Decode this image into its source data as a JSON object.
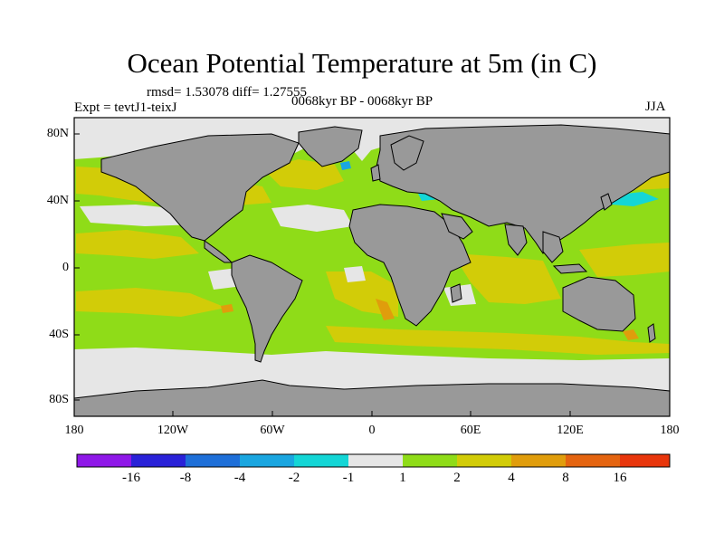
{
  "title": "Ocean Potential Temperature at 5m (in C)",
  "stats": "rmsd= 1.53078 diff= 1.27555",
  "experiment": "Expt = tevtJ1-teixJ",
  "period": "0068kyr BP - 0068kyr BP",
  "season": "JJA",
  "lat_labels": [
    "80N",
    "40N",
    "0",
    "40S",
    "80S"
  ],
  "lon_labels": [
    "180",
    "120W",
    "60W",
    "0",
    "60E",
    "120E",
    "180"
  ],
  "colorbar": {
    "labels": [
      "-16",
      "-8",
      "-4",
      "-2",
      "-1",
      "1",
      "2",
      "4",
      "8",
      "16"
    ],
    "colors": [
      "#8f18e8",
      "#2a22d8",
      "#1e6fd8",
      "#1aa6e0",
      "#14d6d6",
      "#e6e6e6",
      "#8fdc18",
      "#d2cc08",
      "#e09d0c",
      "#e46410",
      "#e8360c"
    ]
  },
  "map_colors": {
    "land": "#999999",
    "sea_ice": "#e6e6e6",
    "warm_1_2": "#8fdc18",
    "warm_2_4": "#d2cc08",
    "warm_4_8": "#e09d0c",
    "cool_neg1_neg2": "#14d6d6",
    "cool_neg2_neg4": "#1aa6e0",
    "cool_neg4_neg8": "#1e6fd8"
  }
}
